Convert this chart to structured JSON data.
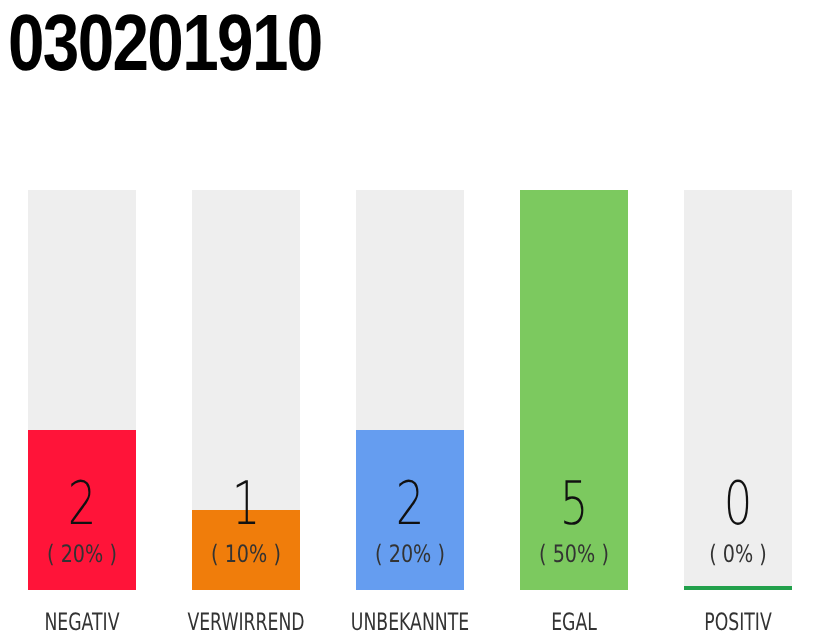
{
  "chart_data": {
    "type": "bar",
    "title": "030201910",
    "categories": [
      "NEGATIV",
      "VERWIRREND",
      "UNBEKANNTE",
      "EGAL",
      "POSITIV"
    ],
    "values": [
      2,
      1,
      2,
      5,
      0
    ],
    "colors": [
      "#ff1439",
      "#f07d0b",
      "#659df0",
      "#7cc95f",
      "#22a04b"
    ],
    "tick_labels": "x",
    "data_labels": true,
    "grid": false,
    "legend": false,
    "annotations": [
      "( 20% )",
      "( 10% )",
      "( 20% )",
      "( 50% )",
      "( 0% )"
    ]
  }
}
